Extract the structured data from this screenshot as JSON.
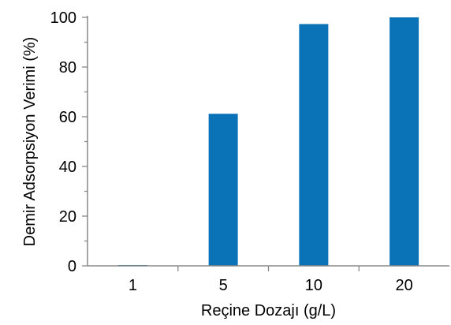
{
  "chart_data": {
    "type": "bar",
    "categories": [
      "1",
      "5",
      "10",
      "20"
    ],
    "values": [
      0.3,
      61.2,
      97.3,
      100
    ],
    "xlabel": "Reçine Dozajı (g/L)",
    "ylabel": "Demir Adsorpsiyon Verimi (%)",
    "ylim": [
      0,
      100
    ],
    "yticks": [
      0,
      20,
      40,
      60,
      80,
      100
    ],
    "bar_color": "#0a73b7",
    "grid": false,
    "legend": "none"
  }
}
